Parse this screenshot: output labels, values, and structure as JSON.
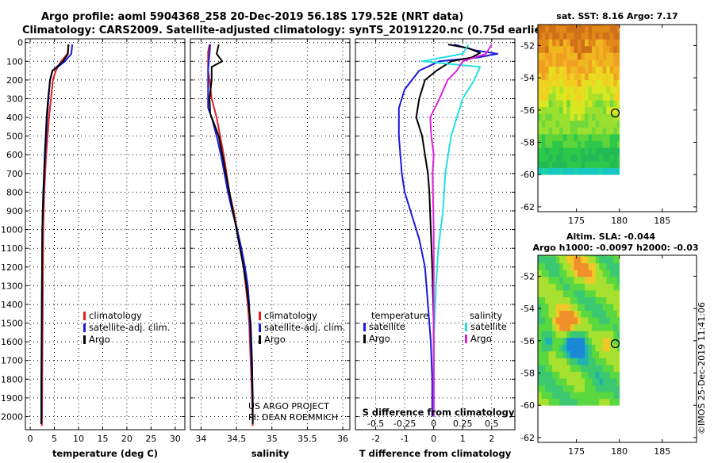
{
  "header": {
    "line1": "Argo profile: aoml 5904368_258 20-Dec-2019 56.18S 179.52E (NRT data)",
    "line2": "Climatology: CARS2009. Satellite-adjusted climatology: synTS_20191220.nc (0.75d earlier)"
  },
  "colors": {
    "climatology": "#e02020",
    "satellite": "#1a1adc",
    "argo": "#000000",
    "sat_salinity": "#22e0e0",
    "argo_salinity": "#e020e0"
  },
  "depth_axis": {
    "ticks": [
      0,
      100,
      200,
      300,
      400,
      500,
      600,
      700,
      800,
      900,
      1000,
      1100,
      1200,
      1300,
      1400,
      1500,
      1600,
      1700,
      1800,
      1900,
      2000
    ],
    "range": [
      -20,
      2070
    ]
  },
  "chart_data": [
    {
      "type": "line",
      "id": "temperature",
      "xlabel": "temperature (deg C)",
      "ylabel": "",
      "xlim": [
        -1,
        32
      ],
      "ylim": [
        2070,
        -20
      ],
      "xticks": [
        0,
        5,
        10,
        15,
        20,
        25,
        30
      ],
      "grid": true,
      "legend_position": "bottom-right",
      "series": [
        {
          "name": "climatology",
          "color": "#e02020",
          "points": [
            [
              8.0,
              10
            ],
            [
              7.7,
              60
            ],
            [
              6.4,
              100
            ],
            [
              5.3,
              150
            ],
            [
              4.7,
              200
            ],
            [
              4.3,
              300
            ],
            [
              3.9,
              400
            ],
            [
              3.6,
              500
            ],
            [
              3.3,
              600
            ],
            [
              3.1,
              700
            ],
            [
              2.9,
              800
            ],
            [
              2.8,
              900
            ],
            [
              2.7,
              1000
            ],
            [
              2.65,
              1200
            ],
            [
              2.6,
              1400
            ],
            [
              2.55,
              1600
            ],
            [
              2.5,
              1800
            ],
            [
              2.45,
              2000
            ],
            [
              2.4,
              2050
            ]
          ]
        },
        {
          "name": "satellite-adj. clim.",
          "color": "#1a1adc",
          "points": [
            [
              8.7,
              10
            ],
            [
              8.5,
              60
            ],
            [
              7.2,
              100
            ],
            [
              5.7,
              130
            ],
            [
              4.6,
              150
            ],
            [
              4.1,
              200
            ],
            [
              3.8,
              300
            ],
            [
              3.5,
              400
            ],
            [
              3.3,
              500
            ],
            [
              3.1,
              600
            ],
            [
              2.9,
              700
            ],
            [
              2.8,
              800
            ],
            [
              2.6,
              900
            ],
            [
              2.5,
              1000
            ],
            [
              2.45,
              1200
            ],
            [
              2.4,
              1400
            ],
            [
              2.4,
              1600
            ],
            [
              2.35,
              1800
            ],
            [
              2.3,
              2000
            ],
            [
              2.3,
              2040
            ]
          ]
        },
        {
          "name": "Argo",
          "color": "#000000",
          "points": [
            [
              7.9,
              10
            ],
            [
              7.8,
              60
            ],
            [
              6.8,
              100
            ],
            [
              5.5,
              130
            ],
            [
              4.6,
              150
            ],
            [
              4.1,
              200
            ],
            [
              3.7,
              300
            ],
            [
              3.4,
              400
            ],
            [
              3.2,
              500
            ],
            [
              3.0,
              600
            ],
            [
              2.85,
              700
            ],
            [
              2.7,
              800
            ],
            [
              2.6,
              900
            ],
            [
              2.5,
              1000
            ],
            [
              2.45,
              1200
            ],
            [
              2.4,
              1400
            ],
            [
              2.35,
              1600
            ],
            [
              2.3,
              1800
            ],
            [
              2.3,
              2000
            ],
            [
              2.3,
              2040
            ]
          ]
        }
      ]
    },
    {
      "type": "line",
      "id": "salinity",
      "xlabel": "salinity",
      "ylabel": "",
      "xlim": [
        33.85,
        36.1
      ],
      "ylim": [
        2070,
        -20
      ],
      "xticks": [
        34,
        34.5,
        35,
        35.5,
        36
      ],
      "xticklabels": [
        "34",
        "34.5",
        "35",
        "35.5",
        "36"
      ],
      "grid": true,
      "legend_position": "bottom-right",
      "series": [
        {
          "name": "climatology",
          "color": "#e02020",
          "points": [
            [
              34.12,
              10
            ],
            [
              34.1,
              50
            ],
            [
              34.1,
              100
            ],
            [
              34.1,
              150
            ],
            [
              34.12,
              200
            ],
            [
              34.15,
              300
            ],
            [
              34.22,
              400
            ],
            [
              34.27,
              500
            ],
            [
              34.32,
              600
            ],
            [
              34.36,
              700
            ],
            [
              34.4,
              800
            ],
            [
              34.46,
              900
            ],
            [
              34.51,
              1000
            ],
            [
              34.56,
              1100
            ],
            [
              34.6,
              1200
            ],
            [
              34.63,
              1300
            ],
            [
              34.66,
              1400
            ],
            [
              34.68,
              1500
            ],
            [
              34.7,
              1700
            ],
            [
              34.72,
              1900
            ],
            [
              34.73,
              2050
            ]
          ]
        },
        {
          "name": "satellite-adj. clim.",
          "color": "#1a1adc",
          "points": [
            [
              34.13,
              10
            ],
            [
              34.12,
              60
            ],
            [
              34.11,
              100
            ],
            [
              34.1,
              150
            ],
            [
              34.1,
              200
            ],
            [
              34.1,
              300
            ],
            [
              34.1,
              350
            ],
            [
              34.15,
              400
            ],
            [
              34.22,
              500
            ],
            [
              34.28,
              600
            ],
            [
              34.33,
              700
            ],
            [
              34.38,
              800
            ],
            [
              34.44,
              900
            ],
            [
              34.51,
              1000
            ],
            [
              34.57,
              1100
            ],
            [
              34.62,
              1200
            ],
            [
              34.66,
              1300
            ],
            [
              34.68,
              1400
            ],
            [
              34.7,
              1600
            ],
            [
              34.72,
              1800
            ],
            [
              34.73,
              2000
            ],
            [
              34.73,
              2040
            ]
          ]
        },
        {
          "name": "Argo",
          "color": "#000000",
          "points": [
            [
              34.25,
              10
            ],
            [
              34.22,
              60
            ],
            [
              34.3,
              100
            ],
            [
              34.15,
              130
            ],
            [
              34.15,
              200
            ],
            [
              34.12,
              300
            ],
            [
              34.13,
              380
            ],
            [
              34.2,
              450
            ],
            [
              34.25,
              500
            ],
            [
              34.3,
              600
            ],
            [
              34.35,
              700
            ],
            [
              34.4,
              800
            ],
            [
              34.45,
              900
            ],
            [
              34.5,
              1000
            ],
            [
              34.55,
              1100
            ],
            [
              34.6,
              1200
            ],
            [
              34.64,
              1300
            ],
            [
              34.67,
              1400
            ],
            [
              34.7,
              1500
            ],
            [
              34.72,
              1700
            ],
            [
              34.73,
              1900
            ],
            [
              34.73,
              2040
            ]
          ]
        }
      ],
      "annotation": [
        "US ARGO PROJECT",
        "PI: DEAN ROEMMICH"
      ]
    },
    {
      "type": "line",
      "id": "difference",
      "xlabel": "T difference from climatology",
      "ylabel": "",
      "xlim": [
        -2.7,
        2.8
      ],
      "ylim": [
        2070,
        -20
      ],
      "xticks": [
        -2,
        -1,
        0,
        1,
        2
      ],
      "xticklabels": [
        "-2",
        "-1",
        "0",
        "1",
        "2"
      ],
      "s_axis_label": "S difference from climatology",
      "s_ticks": [
        -0.5,
        -0.25,
        0,
        0.25,
        0.5
      ],
      "s_ticklabels": [
        "-0.5",
        "-0.25",
        "0",
        "0.25",
        "0.5"
      ],
      "s_scale": 0.25,
      "grid": true,
      "legend_titles": [
        "temperature",
        "salinity"
      ],
      "series": [
        {
          "name": "satellite",
          "group": "temperature",
          "color": "#1a1adc",
          "points": [
            [
              0.7,
              10
            ],
            [
              1.4,
              40
            ],
            [
              2.2,
              60
            ],
            [
              1.5,
              80
            ],
            [
              0.2,
              100
            ],
            [
              -0.5,
              150
            ],
            [
              -1.0,
              250
            ],
            [
              -1.2,
              350
            ],
            [
              -1.2,
              500
            ],
            [
              -1.1,
              700
            ],
            [
              -1.0,
              800
            ],
            [
              -0.8,
              900
            ],
            [
              -0.5,
              1050
            ],
            [
              -0.3,
              1200
            ],
            [
              -0.2,
              1400
            ],
            [
              -0.1,
              1600
            ],
            [
              -0.05,
              1800
            ],
            [
              -0.05,
              2000
            ]
          ]
        },
        {
          "name": "Argo",
          "group": "temperature",
          "color": "#000000",
          "points": [
            [
              0.5,
              10
            ],
            [
              1.2,
              30
            ],
            [
              1.6,
              55
            ],
            [
              1.3,
              80
            ],
            [
              0.6,
              100
            ],
            [
              0.1,
              150
            ],
            [
              -0.3,
              200
            ],
            [
              -0.5,
              300
            ],
            [
              -0.6,
              400
            ],
            [
              -0.4,
              500
            ],
            [
              -0.3,
              600
            ],
            [
              -0.2,
              700
            ],
            [
              -0.15,
              800
            ],
            [
              -0.1,
              1000
            ],
            [
              -0.05,
              1200
            ],
            [
              0.0,
              1500
            ],
            [
              0.0,
              1800
            ],
            [
              0.0,
              2000
            ]
          ]
        },
        {
          "name": "satellite",
          "group": "salinity",
          "color": "#22e0e0",
          "points": [
            [
              0.3,
              10
            ],
            [
              0.25,
              60
            ],
            [
              -0.1,
              100
            ],
            [
              0.4,
              130
            ],
            [
              0.35,
              200
            ],
            [
              0.25,
              300
            ],
            [
              0.15,
              500
            ],
            [
              0.1,
              700
            ],
            [
              0.08,
              900
            ],
            [
              0.04,
              1100
            ],
            [
              0.02,
              1300
            ],
            [
              0.0,
              1600
            ],
            [
              0.0,
              2000
            ]
          ]
        },
        {
          "name": "Argo",
          "group": "salinity",
          "color": "#e020e0",
          "points": [
            [
              0.5,
              10
            ],
            [
              0.45,
              60
            ],
            [
              0.25,
              100
            ],
            [
              0.2,
              150
            ],
            [
              0.12,
              200
            ],
            [
              0.05,
              300
            ],
            [
              -0.03,
              400
            ],
            [
              -0.02,
              500
            ],
            [
              0.0,
              600
            ],
            [
              -0.01,
              700
            ],
            [
              0.0,
              1000
            ],
            [
              0.0,
              1400
            ],
            [
              0.0,
              2000
            ]
          ]
        }
      ]
    },
    {
      "type": "heatmap",
      "id": "sst_map",
      "title": "sat. SST: 8.16 Argo: 7.17",
      "xlim": [
        170.5,
        189
      ],
      "ylim": [
        -62.3,
        -50.7
      ],
      "xticks": [
        175,
        180,
        185
      ],
      "yticks": [
        -52,
        -54,
        -56,
        -58,
        -60,
        -62
      ],
      "data_extent": {
        "lon": [
          170.5,
          180
        ],
        "lat": [
          -60,
          -50.7
        ]
      },
      "argo_location": {
        "lon": 179.52,
        "lat": -56.18
      }
    },
    {
      "type": "heatmap",
      "id": "sla_map",
      "title": "Altim. SLA: -0.044",
      "subtitle": "Argo h1000: -0.0097 h2000: -0.03",
      "xlim": [
        170.5,
        189
      ],
      "ylim": [
        -62.3,
        -50.7
      ],
      "xticks": [
        175,
        180,
        185
      ],
      "yticks": [
        -52,
        -54,
        -56,
        -58,
        -60,
        -62
      ],
      "data_extent": {
        "lon": [
          170.5,
          180
        ],
        "lat": [
          -60,
          -50.7
        ]
      },
      "argo_location": {
        "lon": 179.52,
        "lat": -56.18
      }
    }
  ],
  "footer": {
    "stamp": "©IMOS 25-Dec-2019 11:41:06"
  }
}
